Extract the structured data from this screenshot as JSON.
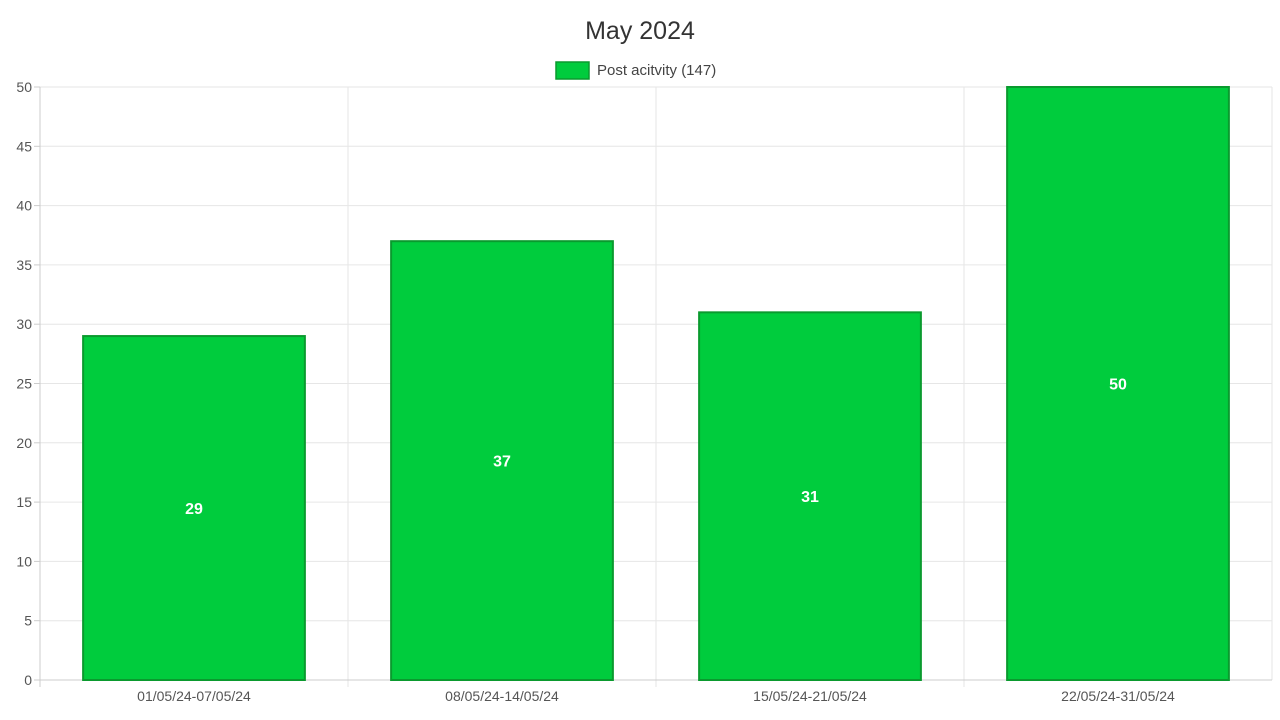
{
  "chart_data": {
    "type": "bar",
    "title": "May 2024",
    "categories": [
      "01/05/24-07/05/24",
      "08/05/24-14/05/24",
      "15/05/24-21/05/24",
      "22/05/24-31/05/24"
    ],
    "series": [
      {
        "name": "Post acitvity (147)",
        "values": [
          29,
          37,
          31,
          50
        ],
        "color": "#00cc3d",
        "border_color": "#0a9a2e"
      }
    ],
    "ylim": [
      0,
      50
    ],
    "yticks": [
      0,
      5,
      10,
      15,
      20,
      25,
      30,
      35,
      40,
      45,
      50
    ],
    "grid": true,
    "legend_position": "top-center",
    "data_labels": true
  }
}
